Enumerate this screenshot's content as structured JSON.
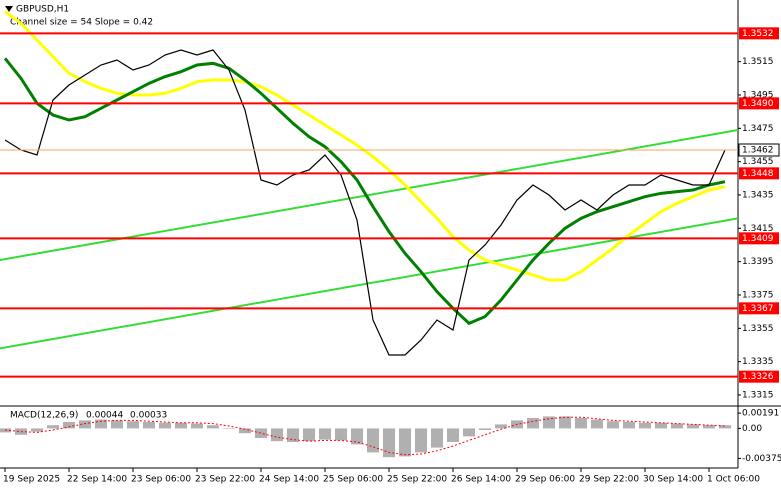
{
  "header": {
    "symbol": "GBPUSD,H1",
    "channel": "Channel size = 54 Slope = 0.42"
  },
  "chart_data": {
    "type": "line",
    "categories": [
      "19 Sep 2025",
      null,
      null,
      null,
      "22 Sep 14:00",
      null,
      null,
      null,
      "23 Sep 06:00",
      null,
      null,
      null,
      "23 Sep 22:00",
      null,
      null,
      null,
      "24 Sep 14:00",
      null,
      null,
      null,
      "25 Sep 06:00",
      null,
      null,
      null,
      "25 Sep 22:00",
      null,
      null,
      null,
      "26 Sep 14:00",
      null,
      null,
      null,
      "29 Sep 06:00",
      null,
      null,
      null,
      "29 Sep 22:00",
      null,
      null,
      null,
      "30 Sep 14:00",
      null,
      null,
      null,
      "1 Oct 06:00",
      null
    ],
    "ylim": [
      1.3309,
      1.3552
    ],
    "yticks": [
      1.3515,
      1.3495,
      1.3475,
      1.3455,
      1.3435,
      1.3415,
      1.3395,
      1.3375,
      1.3355,
      1.3335,
      1.3315
    ],
    "series": [
      {
        "color": "#000000",
        "values": [
          1.3468,
          1.3462,
          1.3459,
          1.3492,
          1.3501,
          1.3507,
          1.3513,
          1.3516,
          1.351,
          1.3513,
          1.3519,
          1.3522,
          1.3519,
          1.3522,
          1.351,
          1.3486,
          1.3444,
          1.3441,
          1.3447,
          1.345,
          1.3459,
          1.3447,
          1.342,
          1.336,
          1.3339,
          1.3339,
          1.3348,
          1.336,
          1.3354,
          1.3396,
          1.3405,
          1.3417,
          1.3432,
          1.3441,
          1.3435,
          1.3426,
          1.3432,
          1.3426,
          1.3435,
          1.3441,
          1.3441,
          1.3447,
          1.3444,
          1.3441,
          1.3441,
          1.3462
        ]
      },
      {
        "color": "#ffff00",
        "values": [
          1.3545,
          1.3538,
          1.3528,
          1.3518,
          1.3508,
          1.3503,
          1.3499,
          1.3496,
          1.3495,
          1.3495,
          1.3496,
          1.3499,
          1.3503,
          1.3504,
          1.3504,
          1.3503,
          1.35,
          1.3495,
          1.3489,
          1.3483,
          1.3477,
          1.3471,
          1.3465,
          1.3458,
          1.345,
          1.3441,
          1.3431,
          1.3421,
          1.341,
          1.3402,
          1.3396,
          1.3393,
          1.339,
          1.3387,
          1.3384,
          1.3384,
          1.3389,
          1.3396,
          1.3403,
          1.3411,
          1.3418,
          1.3425,
          1.343,
          1.3434,
          1.3438,
          1.344
        ]
      },
      {
        "color": "#008000",
        "values": [
          1.3517,
          1.3505,
          1.349,
          1.3483,
          1.348,
          1.3482,
          1.3487,
          1.3492,
          1.3497,
          1.3502,
          1.3506,
          1.3509,
          1.3513,
          1.3514,
          1.3511,
          1.3504,
          1.3496,
          1.3487,
          1.3478,
          1.347,
          1.3464,
          1.3455,
          1.3444,
          1.3428,
          1.3413,
          1.34,
          1.3389,
          1.3377,
          1.3367,
          1.3358,
          1.3362,
          1.3372,
          1.3384,
          1.3396,
          1.3406,
          1.3415,
          1.3421,
          1.3425,
          1.3428,
          1.3431,
          1.3434,
          1.3436,
          1.3437,
          1.3438,
          1.3441,
          1.3443
        ]
      }
    ],
    "channel": {
      "color": "#33dd33",
      "upper": [
        1.3396,
        1.3474
      ],
      "lower": [
        1.3343,
        1.3421
      ]
    },
    "levels": {
      "color": "#ff0000",
      "values": [
        1.3532,
        {
          "value": 1.349,
          "label": "1.3490"
        },
        1.3448,
        1.3409,
        1.3367,
        1.3326
      ]
    },
    "current": 1.3462,
    "macd": {
      "label": "MACD(12,26,9)",
      "main": 0.00044,
      "signal": 0.00033,
      "ylim": [
        -0.0047,
        0.00255
      ],
      "yticks": [
        0.00191,
        {
          "value": 0,
          "label": "0.00"
        },
        -0.00375
      ],
      "histogram": [
        -0.0005,
        -0.0008,
        -0.0004,
        0.0004,
        0.0008,
        0.001,
        0.0011,
        0.001,
        0.0009,
        0.0008,
        0.0007,
        0.0007,
        0.0006,
        0.0004,
        0,
        -0.0006,
        -0.0012,
        -0.0016,
        -0.0017,
        -0.0016,
        -0.0014,
        -0.0015,
        -0.002,
        -0.003,
        -0.0036,
        -0.0035,
        -0.003,
        -0.0024,
        -0.0017,
        -0.001,
        -0.0002,
        0.0005,
        0.001,
        0.0013,
        0.0015,
        0.0015,
        0.0013,
        0.0011,
        0.0009,
        0.0008,
        0.0007,
        0.0007,
        0.0006,
        0.0005,
        0.0004,
        0.0004
      ],
      "signal_line": [
        -0.0002,
        -0.0004,
        -0.0005,
        -0.0002,
        0.0002,
        0.0006,
        0.0009,
        0.001,
        0.001,
        0.0009,
        0.0008,
        0.0007,
        0.0007,
        0.0006,
        0.0003,
        -0.0001,
        -0.0006,
        -0.0011,
        -0.0014,
        -0.0016,
        -0.0015,
        -0.0015,
        -0.0017,
        -0.0023,
        -0.003,
        -0.0033,
        -0.0032,
        -0.0028,
        -0.0022,
        -0.0015,
        -0.0008,
        -0.0001,
        0.0005,
        0.0009,
        0.0012,
        0.0014,
        0.0014,
        0.0012,
        0.001,
        0.0009,
        0.0008,
        0.0007,
        0.0006,
        0.0005,
        0.0004,
        0.0003
      ]
    }
  }
}
